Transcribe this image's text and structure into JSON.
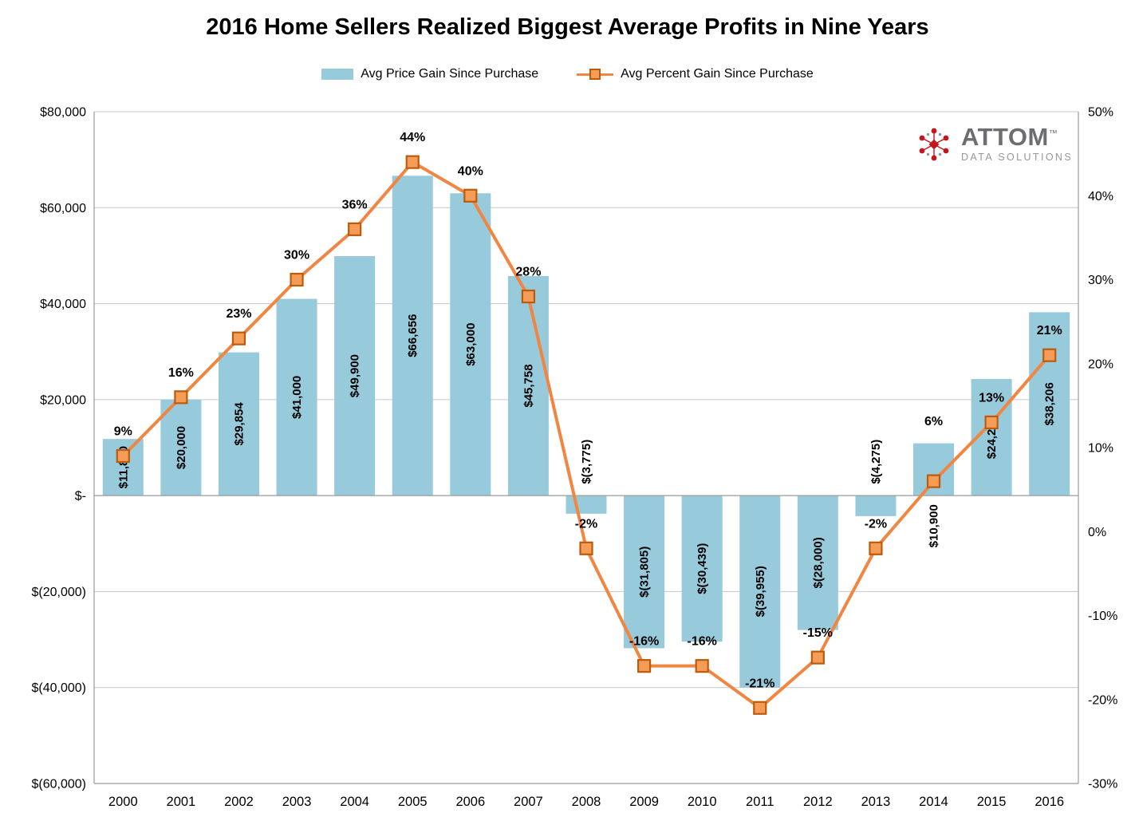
{
  "title": "2016 Home Sellers Realized Biggest Average Profits in Nine Years",
  "legend": [
    {
      "label": "Avg Price Gain Since Purchase",
      "type": "bar"
    },
    {
      "label": "Avg Percent Gain Since Purchase",
      "type": "line"
    }
  ],
  "logo": {
    "name": "ATTOM",
    "tm": "™",
    "subtitle": "DATA SOLUTIONS"
  },
  "colors": {
    "bar": "#97CADB",
    "line": "#F08641",
    "marker_fill": "#F59D56",
    "marker_stroke": "#BC5B0E",
    "gridline": "#C6C6C6",
    "axis_line": "#9B9B9B",
    "text": "#000000",
    "logo_red": "#C4161C",
    "logo_gray": "#6D6E71"
  },
  "chart_data": {
    "type": "bar+line combo",
    "title": "2016 Home Sellers Realized Biggest Average Profits in Nine Years",
    "categories": [
      "2000",
      "2001",
      "2002",
      "2003",
      "2004",
      "2005",
      "2006",
      "2007",
      "2008",
      "2009",
      "2010",
      "2011",
      "2012",
      "2013",
      "2014",
      "2015",
      "2016"
    ],
    "series": [
      {
        "name": "Avg Price Gain Since Purchase",
        "type": "bar",
        "axis": "left",
        "values": [
          11800,
          20000,
          29854,
          41000,
          49900,
          66656,
          63000,
          45758,
          -3775,
          -31805,
          -30439,
          -39955,
          -28000,
          -4275,
          10900,
          24288,
          38206
        ],
        "labels": [
          "$11,800",
          "$20,000",
          "$29,854",
          "$41,000",
          "$49,900",
          "$66,656",
          "$63,000",
          "$45,758",
          "$(3,775)",
          "$(31,805)",
          "$(30,439)",
          "$(39,955)",
          "$(28,000)",
          "$(4,275)",
          "$10,900",
          "$24,288",
          "$38,206"
        ],
        "label_placement": [
          "in",
          "in",
          "in",
          "in",
          "in",
          "in",
          "in",
          "in",
          "out",
          "in",
          "in",
          "in",
          "in",
          "out",
          "out",
          "in",
          "in"
        ]
      },
      {
        "name": "Avg Percent Gain Since Purchase",
        "type": "line",
        "axis": "right",
        "values": [
          9,
          16,
          23,
          30,
          36,
          44,
          40,
          28,
          -2,
          -16,
          -16,
          -21,
          -15,
          -2,
          6,
          13,
          21
        ],
        "labels": [
          "9%",
          "16%",
          "23%",
          "30%",
          "36%",
          "44%",
          "40%",
          "28%",
          "-2%",
          "-16%",
          "-16%",
          "-21%",
          "-15%",
          "-2%",
          "6%",
          "13%",
          "21%"
        ],
        "label_dy_default": -26,
        "label_dy_overrides": {
          "14": -70
        }
      }
    ],
    "axes": {
      "left": {
        "min": -60000,
        "max": 80000,
        "step": 20000,
        "tick_labels": [
          "$80,000",
          "$60,000",
          "$40,000",
          "$20,000",
          "$-",
          "$(20,000)",
          "$(40,000)",
          "$(60,000)"
        ]
      },
      "right": {
        "min": -30,
        "max": 50,
        "step": 10,
        "tick_labels": [
          "50%",
          "40%",
          "30%",
          "20%",
          "10%",
          "0%",
          "-10%",
          "-20%",
          "-30%"
        ]
      }
    },
    "grid": true,
    "legend_position": "top"
  }
}
